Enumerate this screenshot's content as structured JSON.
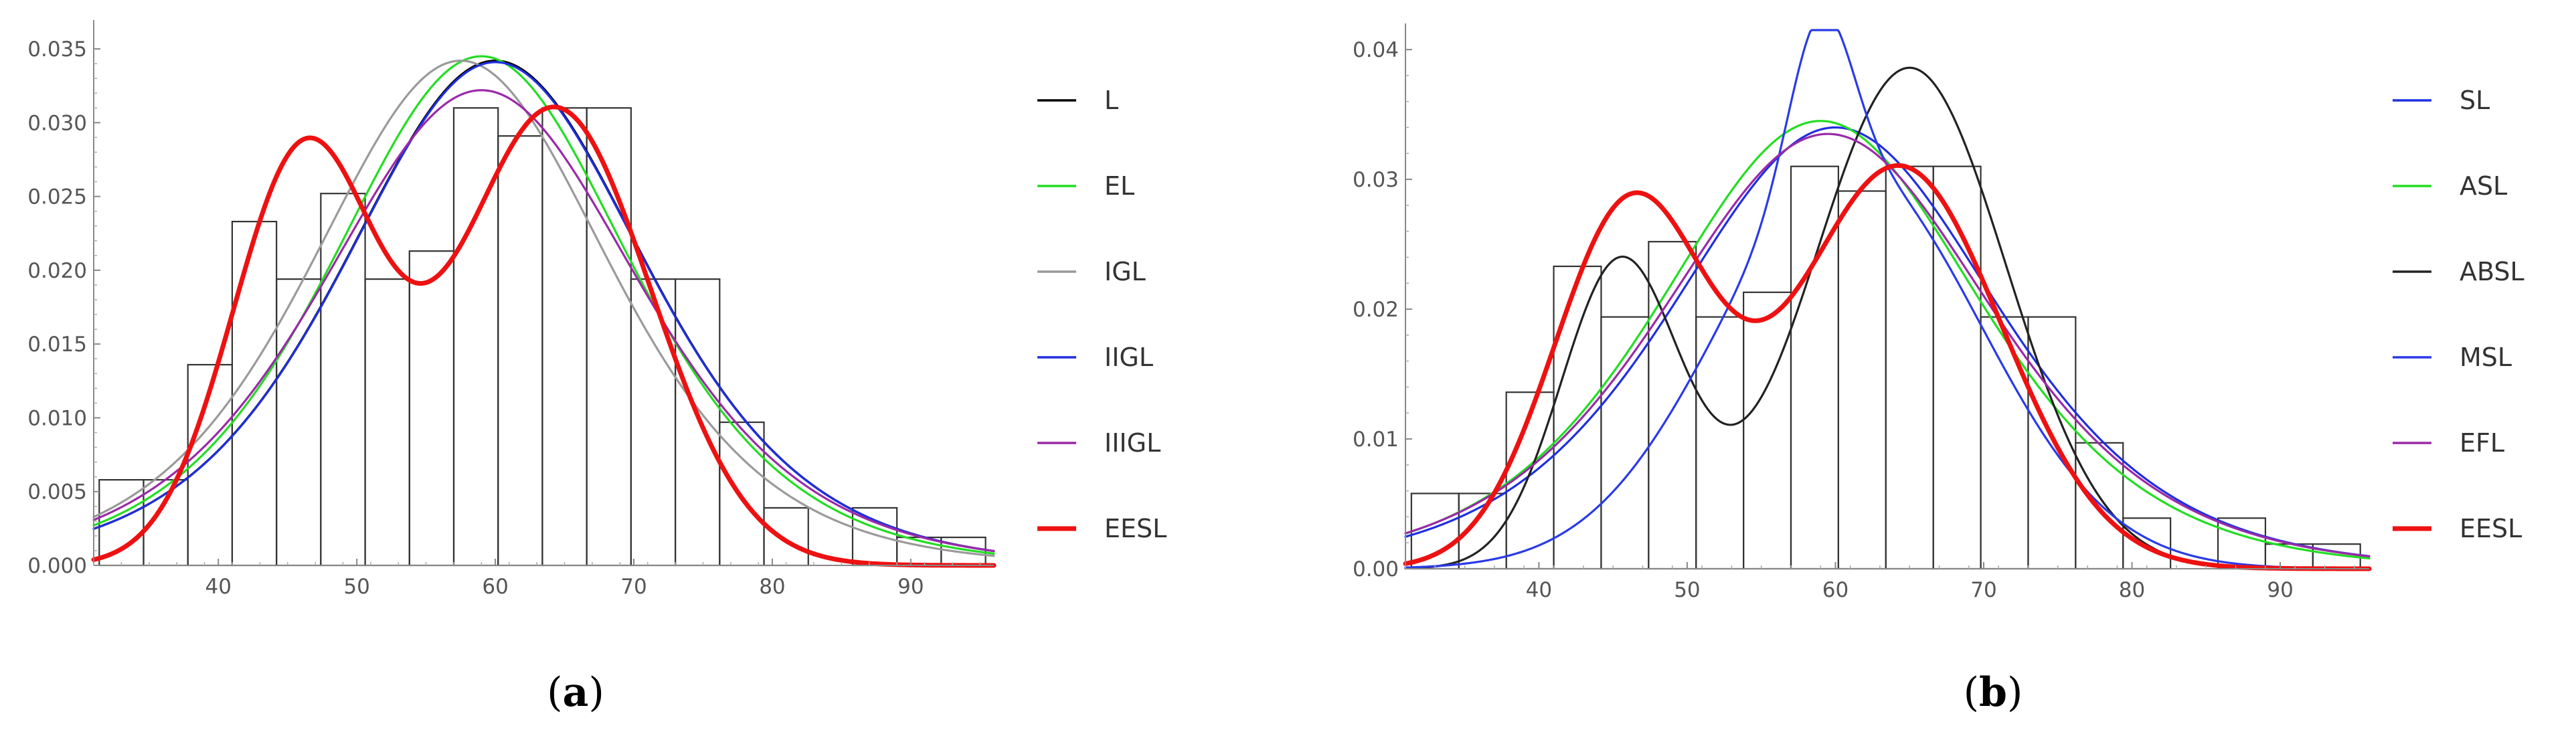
{
  "chart_data": [
    {
      "type": "histogram",
      "panel_label": "a",
      "x_ticks": [
        40,
        50,
        60,
        70,
        80,
        90
      ],
      "x_tick_labels": [
        "40",
        "50",
        "60",
        "70",
        "80",
        "90"
      ],
      "xlim": [
        31,
        96
      ],
      "y_ticks": [
        0,
        0.005,
        0.01,
        0.015,
        0.02,
        0.025,
        0.03,
        0.035
      ],
      "y_tick_labels": [
        "0.000",
        "0.005",
        "0.010",
        "0.015",
        "0.020",
        "0.025",
        "0.030",
        "0.035"
      ],
      "ylim": [
        0,
        0.0365
      ],
      "bars": {
        "edges": [
          31.4,
          34.6,
          37.8,
          41.0,
          44.2,
          47.4,
          50.6,
          53.8,
          57.0,
          60.2,
          63.4,
          66.6,
          69.8,
          73.0,
          76.2,
          79.4,
          82.6,
          85.8,
          89.0,
          92.2,
          95.4
        ],
        "heights": [
          0.0058,
          0.0058,
          0.0136,
          0.0233,
          0.0194,
          0.0252,
          0.0194,
          0.0213,
          0.031,
          0.0291,
          0.031,
          0.031,
          0.0194,
          0.0194,
          0.0097,
          0.0039,
          0.0,
          0.0039,
          0.0019,
          0.0019
        ]
      },
      "series": [
        {
          "name": "L",
          "color": "#000000",
          "kind": "logistic",
          "mu": 60.0,
          "s": 7.3,
          "amp": 0.0342
        },
        {
          "name": "EL",
          "color": "#22dd22",
          "kind": "logistic",
          "mu": 59.0,
          "s": 7.2,
          "amp": 0.0345
        },
        {
          "name": "IGL",
          "color": "#9a9a9a",
          "kind": "logistic",
          "mu": 57.5,
          "s": 7.2,
          "amp": 0.0342
        },
        {
          "name": "IIGL",
          "color": "#1f2fe0",
          "kind": "logistic",
          "mu": 60.0,
          "s": 7.3,
          "amp": 0.0341
        },
        {
          "name": "IIIGL",
          "color": "#9a2aa8",
          "kind": "logistic",
          "mu": 59.0,
          "s": 7.6,
          "amp": 0.0322
        },
        {
          "name": "EESL",
          "color": "#ee1111",
          "kind": "mixture",
          "components": [
            {
              "mu": 46.2,
              "sd": 5.2,
              "amp": 0.0279
            },
            {
              "mu": 64.3,
              "sd": 6.9,
              "amp": 0.031
            }
          ]
        }
      ]
    },
    {
      "type": "histogram",
      "panel_label": "b",
      "x_ticks": [
        40,
        50,
        60,
        70,
        80,
        90
      ],
      "x_tick_labels": [
        "40",
        "50",
        "60",
        "70",
        "80",
        "90"
      ],
      "xlim": [
        31,
        96
      ],
      "y_ticks": [
        0,
        0.01,
        0.02,
        0.03,
        0.04
      ],
      "y_tick_labels": [
        "0.00",
        "0.01",
        "0.02",
        "0.03",
        "0.04"
      ],
      "ylim": [
        0,
        0.0415
      ],
      "bars": {
        "edges": [
          31.4,
          34.6,
          37.8,
          41.0,
          44.2,
          47.4,
          50.6,
          53.8,
          57.0,
          60.2,
          63.4,
          66.6,
          69.8,
          73.0,
          76.2,
          79.4,
          82.6,
          85.8,
          89.0,
          92.2,
          95.4
        ],
        "heights": [
          0.0058,
          0.0058,
          0.0136,
          0.0233,
          0.0194,
          0.0252,
          0.0194,
          0.0213,
          0.031,
          0.0291,
          0.031,
          0.031,
          0.0194,
          0.0194,
          0.0097,
          0.0039,
          0.0,
          0.0039,
          0.0019,
          0.0019
        ]
      },
      "series": [
        {
          "name": "SL",
          "color": "#1f2fe0",
          "kind": "logistic",
          "mu": 60.0,
          "s": 7.3,
          "amp": 0.034
        },
        {
          "name": "ASL",
          "color": "#22dd22",
          "kind": "logistic",
          "mu": 59.0,
          "s": 7.2,
          "amp": 0.0345
        },
        {
          "name": "ABSL",
          "color": "#222222",
          "kind": "mixture",
          "components": [
            {
              "mu": 45.5,
              "sd": 4.0,
              "amp": 0.0236
            },
            {
              "mu": 65.0,
              "sd": 6.5,
              "amp": 0.0386
            }
          ]
        },
        {
          "name": "MSL",
          "color": "#2a3ae8",
          "kind": "mixture",
          "components": [
            {
              "mu": 59.0,
              "sd": 2.1,
              "amp": 0.0125
            },
            {
              "mu": 61.0,
              "sd": 8.8,
              "amp": 0.031
            }
          ]
        },
        {
          "name": "EFL",
          "color": "#9a2aa8",
          "kind": "logistic",
          "mu": 59.5,
          "s": 7.4,
          "amp": 0.0335
        },
        {
          "name": "EESL",
          "color": "#ee1111",
          "kind": "mixture",
          "components": [
            {
              "mu": 46.2,
              "sd": 5.2,
              "amp": 0.0279
            },
            {
              "mu": 64.3,
              "sd": 6.9,
              "amp": 0.031
            }
          ]
        }
      ]
    }
  ],
  "captions": {
    "a": {
      "open": "(",
      "letter": "a",
      "close": ")"
    },
    "b": {
      "open": "(",
      "letter": "b",
      "close": ")"
    }
  }
}
